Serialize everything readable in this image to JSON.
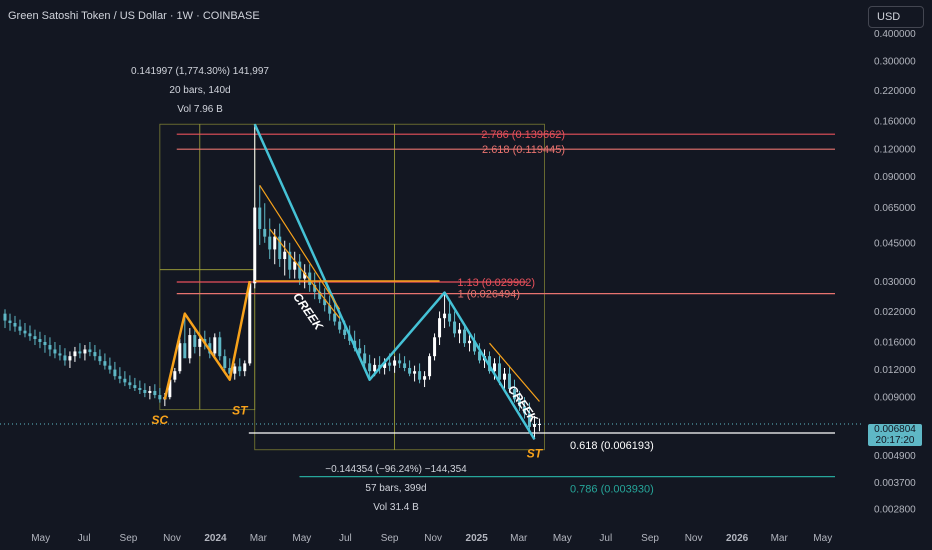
{
  "header": {
    "title": "Green Satoshi Token / US Dollar · 1W · COINBASE",
    "currency_button": "USD"
  },
  "measurements": {
    "top": {
      "line1": "0.141997 (1,774.30%) 141,997",
      "line2": "20 bars, 140d",
      "line3": "Vol 7.96 B"
    },
    "bottom": {
      "line1": "−0.144354 (−96.24%) −144,354",
      "line2": "57 bars, 399d",
      "line3": "Vol 31.4 B"
    }
  },
  "price_tag": {
    "price": "0.006804",
    "countdown": "20:17:20"
  },
  "chart_data": {
    "type": "candlestick",
    "symbol": "Green Satoshi Token / US Dollar",
    "interval": "1W",
    "exchange": "COINBASE",
    "yscale": "log",
    "ylim": [
      0.0025,
      0.45
    ],
    "ytick_labels": [
      "0.400000",
      "0.300000",
      "0.220000",
      "0.160000",
      "0.120000",
      "0.090000",
      "0.065000",
      "0.045000",
      "0.030000",
      "0.022000",
      "0.016000",
      "0.012000",
      "0.009000",
      "0.004900",
      "0.003700",
      "0.002800"
    ],
    "ytick_values": [
      0.4,
      0.3,
      0.22,
      0.16,
      0.12,
      0.09,
      0.065,
      0.045,
      0.03,
      0.022,
      0.016,
      0.012,
      0.009,
      0.0049,
      0.0037,
      0.0028
    ],
    "xtick_labels": [
      "May",
      "Jul",
      "Sep",
      "Nov",
      "2024",
      "Mar",
      "May",
      "Jul",
      "Sep",
      "Nov",
      "2025",
      "Mar",
      "May",
      "Jul",
      "Sep",
      "Nov",
      "2026",
      "Mar",
      "May"
    ],
    "xtick_dates": [
      "2023-05-01",
      "2023-07-01",
      "2023-09-01",
      "2023-11-01",
      "2024-01-01",
      "2024-03-01",
      "2024-05-01",
      "2024-07-01",
      "2024-09-01",
      "2024-11-01",
      "2025-01-01",
      "2025-03-01",
      "2025-05-01",
      "2025-07-01",
      "2025-09-01",
      "2025-11-01",
      "2026-01-01",
      "2026-03-01",
      "2026-05-01"
    ],
    "xlim": [
      "2023-03-05",
      "2026-06-25"
    ],
    "current_price": 0.006804,
    "candles": [
      [
        "2023-03-12",
        0.0215,
        0.0225,
        0.0185,
        0.02
      ],
      [
        "2023-03-19",
        0.02,
        0.0215,
        0.018,
        0.0195
      ],
      [
        "2023-03-26",
        0.0195,
        0.021,
        0.0178,
        0.0188
      ],
      [
        "2023-04-02",
        0.0188,
        0.0202,
        0.0172,
        0.018
      ],
      [
        "2023-04-09",
        0.018,
        0.0195,
        0.0168,
        0.0175
      ],
      [
        "2023-04-16",
        0.0175,
        0.019,
        0.0162,
        0.017
      ],
      [
        "2023-04-23",
        0.017,
        0.0182,
        0.0155,
        0.0165
      ],
      [
        "2023-04-30",
        0.0165,
        0.0178,
        0.015,
        0.016
      ],
      [
        "2023-05-07",
        0.016,
        0.0172,
        0.0143,
        0.0155
      ],
      [
        "2023-05-14",
        0.0155,
        0.0168,
        0.0138,
        0.0148
      ],
      [
        "2023-05-21",
        0.0148,
        0.016,
        0.0135,
        0.0142
      ],
      [
        "2023-05-28",
        0.0142,
        0.0155,
        0.0132,
        0.0139
      ],
      [
        "2023-06-04",
        0.0139,
        0.015,
        0.0125,
        0.0132
      ],
      [
        "2023-06-11",
        0.0132,
        0.0145,
        0.0122,
        0.0138
      ],
      [
        "2023-06-18",
        0.0138,
        0.0152,
        0.013,
        0.0145
      ],
      [
        "2023-06-25",
        0.0145,
        0.0158,
        0.0135,
        0.0142
      ],
      [
        "2023-07-02",
        0.0142,
        0.0155,
        0.0132,
        0.0148
      ],
      [
        "2023-07-09",
        0.0148,
        0.016,
        0.0138,
        0.0144
      ],
      [
        "2023-07-16",
        0.0144,
        0.0155,
        0.0132,
        0.0138
      ],
      [
        "2023-07-23",
        0.0138,
        0.0148,
        0.0126,
        0.0131
      ],
      [
        "2023-07-30",
        0.0131,
        0.0142,
        0.012,
        0.0125
      ],
      [
        "2023-08-06",
        0.0125,
        0.0136,
        0.0115,
        0.012
      ],
      [
        "2023-08-13",
        0.012,
        0.013,
        0.0108,
        0.0112
      ],
      [
        "2023-08-20",
        0.0112,
        0.0123,
        0.0104,
        0.0109
      ],
      [
        "2023-08-27",
        0.0109,
        0.0118,
        0.0101,
        0.0105
      ],
      [
        "2023-09-03",
        0.0105,
        0.0113,
        0.0098,
        0.0102
      ],
      [
        "2023-09-10",
        0.0102,
        0.011,
        0.0096,
        0.0099
      ],
      [
        "2023-09-17",
        0.0099,
        0.0107,
        0.0093,
        0.0097
      ],
      [
        "2023-09-24",
        0.0097,
        0.0104,
        0.009,
        0.0094
      ],
      [
        "2023-10-01",
        0.0094,
        0.0101,
        0.0088,
        0.0096
      ],
      [
        "2023-10-08",
        0.0096,
        0.0103,
        0.0089,
        0.0092
      ],
      [
        "2023-10-15",
        0.0092,
        0.0099,
        0.0085,
        0.0088
      ],
      [
        "2023-10-22",
        0.0088,
        0.0094,
        0.0082,
        0.009
      ],
      [
        "2023-10-29",
        0.009,
        0.0112,
        0.0088,
        0.0108
      ],
      [
        "2023-11-05",
        0.0108,
        0.0122,
        0.0105,
        0.0118
      ],
      [
        "2023-11-12",
        0.0118,
        0.0165,
        0.0115,
        0.0158
      ],
      [
        "2023-11-19",
        0.0158,
        0.0215,
        0.0145,
        0.0135
      ],
      [
        "2023-11-26",
        0.0135,
        0.0185,
        0.0128,
        0.0172
      ],
      [
        "2023-12-03",
        0.0172,
        0.0185,
        0.0142,
        0.0152
      ],
      [
        "2023-12-10",
        0.0152,
        0.0172,
        0.0138,
        0.0165
      ],
      [
        "2023-12-17",
        0.0165,
        0.018,
        0.0148,
        0.0158
      ],
      [
        "2023-12-24",
        0.0158,
        0.0168,
        0.0135,
        0.0142
      ],
      [
        "2023-12-31",
        0.0142,
        0.0175,
        0.0138,
        0.0168
      ],
      [
        "2024-01-07",
        0.0168,
        0.0178,
        0.0132,
        0.0138
      ],
      [
        "2024-01-14",
        0.0138,
        0.0148,
        0.0118,
        0.0122
      ],
      [
        "2024-01-21",
        0.0122,
        0.0135,
        0.0108,
        0.0115
      ],
      [
        "2024-01-28",
        0.0115,
        0.0128,
        0.0108,
        0.0124
      ],
      [
        "2024-02-04",
        0.0124,
        0.0135,
        0.0112,
        0.0118
      ],
      [
        "2024-02-11",
        0.0118,
        0.0132,
        0.0112,
        0.0128
      ],
      [
        "2024-02-18",
        0.0128,
        0.0302,
        0.0125,
        0.0295
      ],
      [
        "2024-02-25",
        0.0295,
        0.155,
        0.028,
        0.065
      ],
      [
        "2024-03-03",
        0.065,
        0.082,
        0.044,
        0.052
      ],
      [
        "2024-03-10",
        0.052,
        0.068,
        0.045,
        0.048
      ],
      [
        "2024-03-17",
        0.048,
        0.058,
        0.038,
        0.042
      ],
      [
        "2024-03-24",
        0.042,
        0.052,
        0.036,
        0.048
      ],
      [
        "2024-03-31",
        0.048,
        0.055,
        0.035,
        0.038
      ],
      [
        "2024-04-07",
        0.038,
        0.046,
        0.032,
        0.041
      ],
      [
        "2024-04-14",
        0.041,
        0.045,
        0.031,
        0.034
      ],
      [
        "2024-04-21",
        0.034,
        0.041,
        0.031,
        0.037
      ],
      [
        "2024-04-28",
        0.037,
        0.04,
        0.029,
        0.031
      ],
      [
        "2024-05-05",
        0.031,
        0.036,
        0.028,
        0.033
      ],
      [
        "2024-05-12",
        0.033,
        0.036,
        0.027,
        0.029
      ],
      [
        "2024-05-19",
        0.029,
        0.033,
        0.025,
        0.027
      ],
      [
        "2024-05-26",
        0.027,
        0.03,
        0.024,
        0.025
      ],
      [
        "2024-06-02",
        0.025,
        0.028,
        0.022,
        0.0235
      ],
      [
        "2024-06-09",
        0.0235,
        0.026,
        0.02,
        0.0215
      ],
      [
        "2024-06-16",
        0.0215,
        0.024,
        0.019,
        0.0198
      ],
      [
        "2024-06-23",
        0.0198,
        0.022,
        0.0175,
        0.0182
      ],
      [
        "2024-06-30",
        0.0182,
        0.02,
        0.0165,
        0.0172
      ],
      [
        "2024-07-07",
        0.0172,
        0.019,
        0.0155,
        0.0162
      ],
      [
        "2024-07-14",
        0.0162,
        0.018,
        0.0145,
        0.015
      ],
      [
        "2024-07-21",
        0.015,
        0.0165,
        0.0135,
        0.0142
      ],
      [
        "2024-07-28",
        0.0142,
        0.0155,
        0.012,
        0.0128
      ],
      [
        "2024-08-04",
        0.0128,
        0.014,
        0.0108,
        0.0118
      ],
      [
        "2024-08-11",
        0.0118,
        0.0135,
        0.0112,
        0.0126
      ],
      [
        "2024-08-18",
        0.0126,
        0.0138,
        0.0115,
        0.0122
      ],
      [
        "2024-08-25",
        0.0122,
        0.0135,
        0.0114,
        0.0129
      ],
      [
        "2024-09-01",
        0.0129,
        0.0142,
        0.0118,
        0.0125
      ],
      [
        "2024-09-08",
        0.0125,
        0.0138,
        0.0116,
        0.0132
      ],
      [
        "2024-09-15",
        0.0132,
        0.0142,
        0.0122,
        0.0128
      ],
      [
        "2024-09-22",
        0.0128,
        0.0138,
        0.0118,
        0.0122
      ],
      [
        "2024-09-29",
        0.0122,
        0.0132,
        0.0112,
        0.0115
      ],
      [
        "2024-10-06",
        0.0115,
        0.0125,
        0.0106,
        0.0118
      ],
      [
        "2024-10-13",
        0.0118,
        0.0128,
        0.0104,
        0.0108
      ],
      [
        "2024-10-20",
        0.0108,
        0.0118,
        0.01,
        0.0112
      ],
      [
        "2024-10-27",
        0.0112,
        0.0142,
        0.0108,
        0.0138
      ],
      [
        "2024-11-03",
        0.0138,
        0.0175,
        0.0132,
        0.0168
      ],
      [
        "2024-11-10",
        0.0168,
        0.022,
        0.0155,
        0.0205
      ],
      [
        "2024-11-17",
        0.0205,
        0.0268,
        0.0185,
        0.0215
      ],
      [
        "2024-11-24",
        0.0215,
        0.025,
        0.0188,
        0.0198
      ],
      [
        "2024-12-01",
        0.0198,
        0.022,
        0.0168,
        0.0175
      ],
      [
        "2024-12-08",
        0.0175,
        0.0195,
        0.0158,
        0.0182
      ],
      [
        "2024-12-15",
        0.0182,
        0.0192,
        0.0152,
        0.0158
      ],
      [
        "2024-12-22",
        0.0158,
        0.0172,
        0.0145,
        0.0162
      ],
      [
        "2024-12-29",
        0.0162,
        0.0175,
        0.014,
        0.0145
      ],
      [
        "2025-01-05",
        0.0145,
        0.0158,
        0.0128,
        0.0132
      ],
      [
        "2025-01-12",
        0.0132,
        0.0148,
        0.0122,
        0.0138
      ],
      [
        "2025-01-19",
        0.0138,
        0.0145,
        0.0115,
        0.0118
      ],
      [
        "2025-01-26",
        0.0118,
        0.0135,
        0.0108,
        0.0128
      ],
      [
        "2025-02-02",
        0.0128,
        0.0138,
        0.0102,
        0.0108
      ],
      [
        "2025-02-09",
        0.0108,
        0.0122,
        0.0098,
        0.0115
      ],
      [
        "2025-02-16",
        0.0115,
        0.0125,
        0.0094,
        0.0098
      ],
      [
        "2025-02-23",
        0.0098,
        0.0108,
        0.0085,
        0.0088
      ],
      [
        "2025-03-02",
        0.0088,
        0.0096,
        0.0078,
        0.0082
      ],
      [
        "2025-03-09",
        0.0082,
        0.009,
        0.0072,
        0.0076
      ],
      [
        "2025-03-16",
        0.0076,
        0.0085,
        0.0062,
        0.0066
      ],
      [
        "2025-03-23",
        0.0066,
        0.0074,
        0.0058,
        0.0068
      ],
      [
        "2025-03-30",
        0.0068,
        0.0072,
        0.0063,
        0.0068
      ]
    ],
    "fib_levels": [
      {
        "label": "2.786 (0.139662)",
        "value": 0.139662,
        "color": "#e8505b"
      },
      {
        "label": "2.618 (0.119445)",
        "value": 0.119445,
        "color": "#e8736f"
      },
      {
        "label": "1.13 (0.029902)",
        "value": 0.029902,
        "color": "#e8505b"
      },
      {
        "label": "1 (0.026494)",
        "value": 0.026494,
        "color": "#e8736f"
      },
      {
        "label": "0.618 (0.006193)",
        "value": 0.006193,
        "color": "#ffffff"
      },
      {
        "label": "0.786 (0.003930)",
        "value": 0.00393,
        "color": "#26a69a"
      }
    ],
    "annotations": [
      "SC",
      "ST",
      "CREEK",
      "CREEK",
      "ST"
    ]
  },
  "colors": {
    "background": "#131722",
    "up": "#ffffff",
    "down": "#5fb8c6",
    "accumulation_line": "#f7a21b",
    "distribution_line": "#45c2d6",
    "box": "#a7a83a",
    "resistance_line": "#f7a21b",
    "grid_text": "#787b86"
  }
}
